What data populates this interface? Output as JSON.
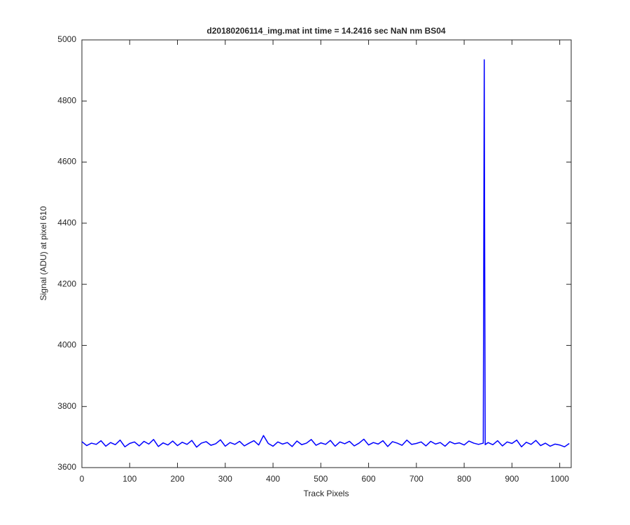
{
  "chart_data": {
    "type": "line",
    "title": "d20180206114_img.mat int time = 14.2416 sec  NaN nm BS04",
    "x_label": "Track Pixels",
    "y_label": "Signal (ADU) at pixel 610",
    "x": [
      0,
      10,
      20,
      30,
      40,
      50,
      60,
      70,
      80,
      90,
      100,
      110,
      120,
      130,
      140,
      150,
      160,
      170,
      180,
      190,
      200,
      210,
      220,
      230,
      240,
      250,
      260,
      270,
      280,
      290,
      300,
      310,
      320,
      330,
      340,
      350,
      360,
      370,
      380,
      390,
      400,
      410,
      420,
      430,
      440,
      450,
      460,
      470,
      480,
      490,
      500,
      510,
      520,
      530,
      540,
      550,
      560,
      570,
      580,
      590,
      600,
      610,
      620,
      630,
      640,
      650,
      660,
      670,
      680,
      690,
      700,
      710,
      720,
      730,
      740,
      750,
      760,
      770,
      780,
      790,
      800,
      810,
      820,
      830,
      840,
      842,
      844,
      850,
      860,
      870,
      880,
      890,
      900,
      910,
      920,
      930,
      940,
      950,
      960,
      970,
      980,
      990,
      1000,
      1010,
      1020
    ],
    "series": [
      {
        "color": "#0000ff",
        "values": [
          3685,
          3672,
          3680,
          3676,
          3688,
          3670,
          3682,
          3675,
          3690,
          3668,
          3679,
          3684,
          3671,
          3686,
          3677,
          3692,
          3669,
          3681,
          3674,
          3687,
          3672,
          3683,
          3676,
          3689,
          3667,
          3680,
          3685,
          3673,
          3678,
          3691,
          3670,
          3682,
          3676,
          3686,
          3671,
          3680,
          3688,
          3674,
          3705,
          3679,
          3670,
          3684,
          3677,
          3682,
          3669,
          3687,
          3675,
          3680,
          3692,
          3673,
          3681,
          3676,
          3689,
          3670,
          3684,
          3678,
          3686,
          3671,
          3680,
          3693,
          3674,
          3682,
          3677,
          3688,
          3669,
          3685,
          3680,
          3673,
          3690,
          3676,
          3679,
          3684,
          3671,
          3686,
          3677,
          3682,
          3670,
          3685,
          3678,
          3681,
          3674,
          3687,
          3680,
          3676,
          3680,
          4935,
          3675,
          3682,
          3675,
          3688,
          3671,
          3684,
          3679,
          3690,
          3668,
          3683,
          3676,
          3689,
          3672,
          3680,
          3670,
          3677,
          3674,
          3668,
          3679
        ]
      }
    ],
    "xlim": [
      0,
      1024
    ],
    "ylim": [
      3600,
      5000
    ],
    "xticks": [
      0,
      100,
      200,
      300,
      400,
      500,
      600,
      700,
      800,
      900,
      1000
    ],
    "yticks": [
      3600,
      3800,
      4000,
      4200,
      4400,
      4600,
      4800,
      5000
    ],
    "grid": false
  }
}
